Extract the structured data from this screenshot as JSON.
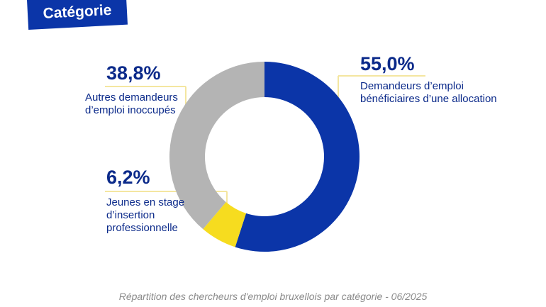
{
  "header": {
    "badge_label": "Catégorie"
  },
  "caption": "Répartition des chercheurs d'emploi bruxellois par catégorie - 06/2025",
  "colors": {
    "accent": "#0b35a8",
    "leader": "#f4e6a0"
  },
  "chart_data": {
    "type": "pie",
    "donut": true,
    "categories": [
      "Demandeurs d'emploi bénéficiaires d'une allocation",
      "Jeunes en stage d'insertion professionnelle",
      "Autres demandeurs d'emploi inoccupés"
    ],
    "values": [
      55.0,
      6.2,
      38.8
    ],
    "colors": [
      "#0b35a8",
      "#f6dc1f",
      "#b4b4b4"
    ],
    "labels": [
      {
        "value_text": "55,0%",
        "lines": [
          "Demandeurs d’emploi",
          "bénéficiaires d’une allocation"
        ]
      },
      {
        "value_text": "6,2%",
        "lines": [
          "Jeunes en stage",
          "d’insertion",
          "professionnelle"
        ]
      },
      {
        "value_text": "38,8%",
        "lines": [
          "Autres demandeurs",
          "d’emploi inoccupés"
        ]
      }
    ],
    "title": "",
    "legend": "none"
  }
}
